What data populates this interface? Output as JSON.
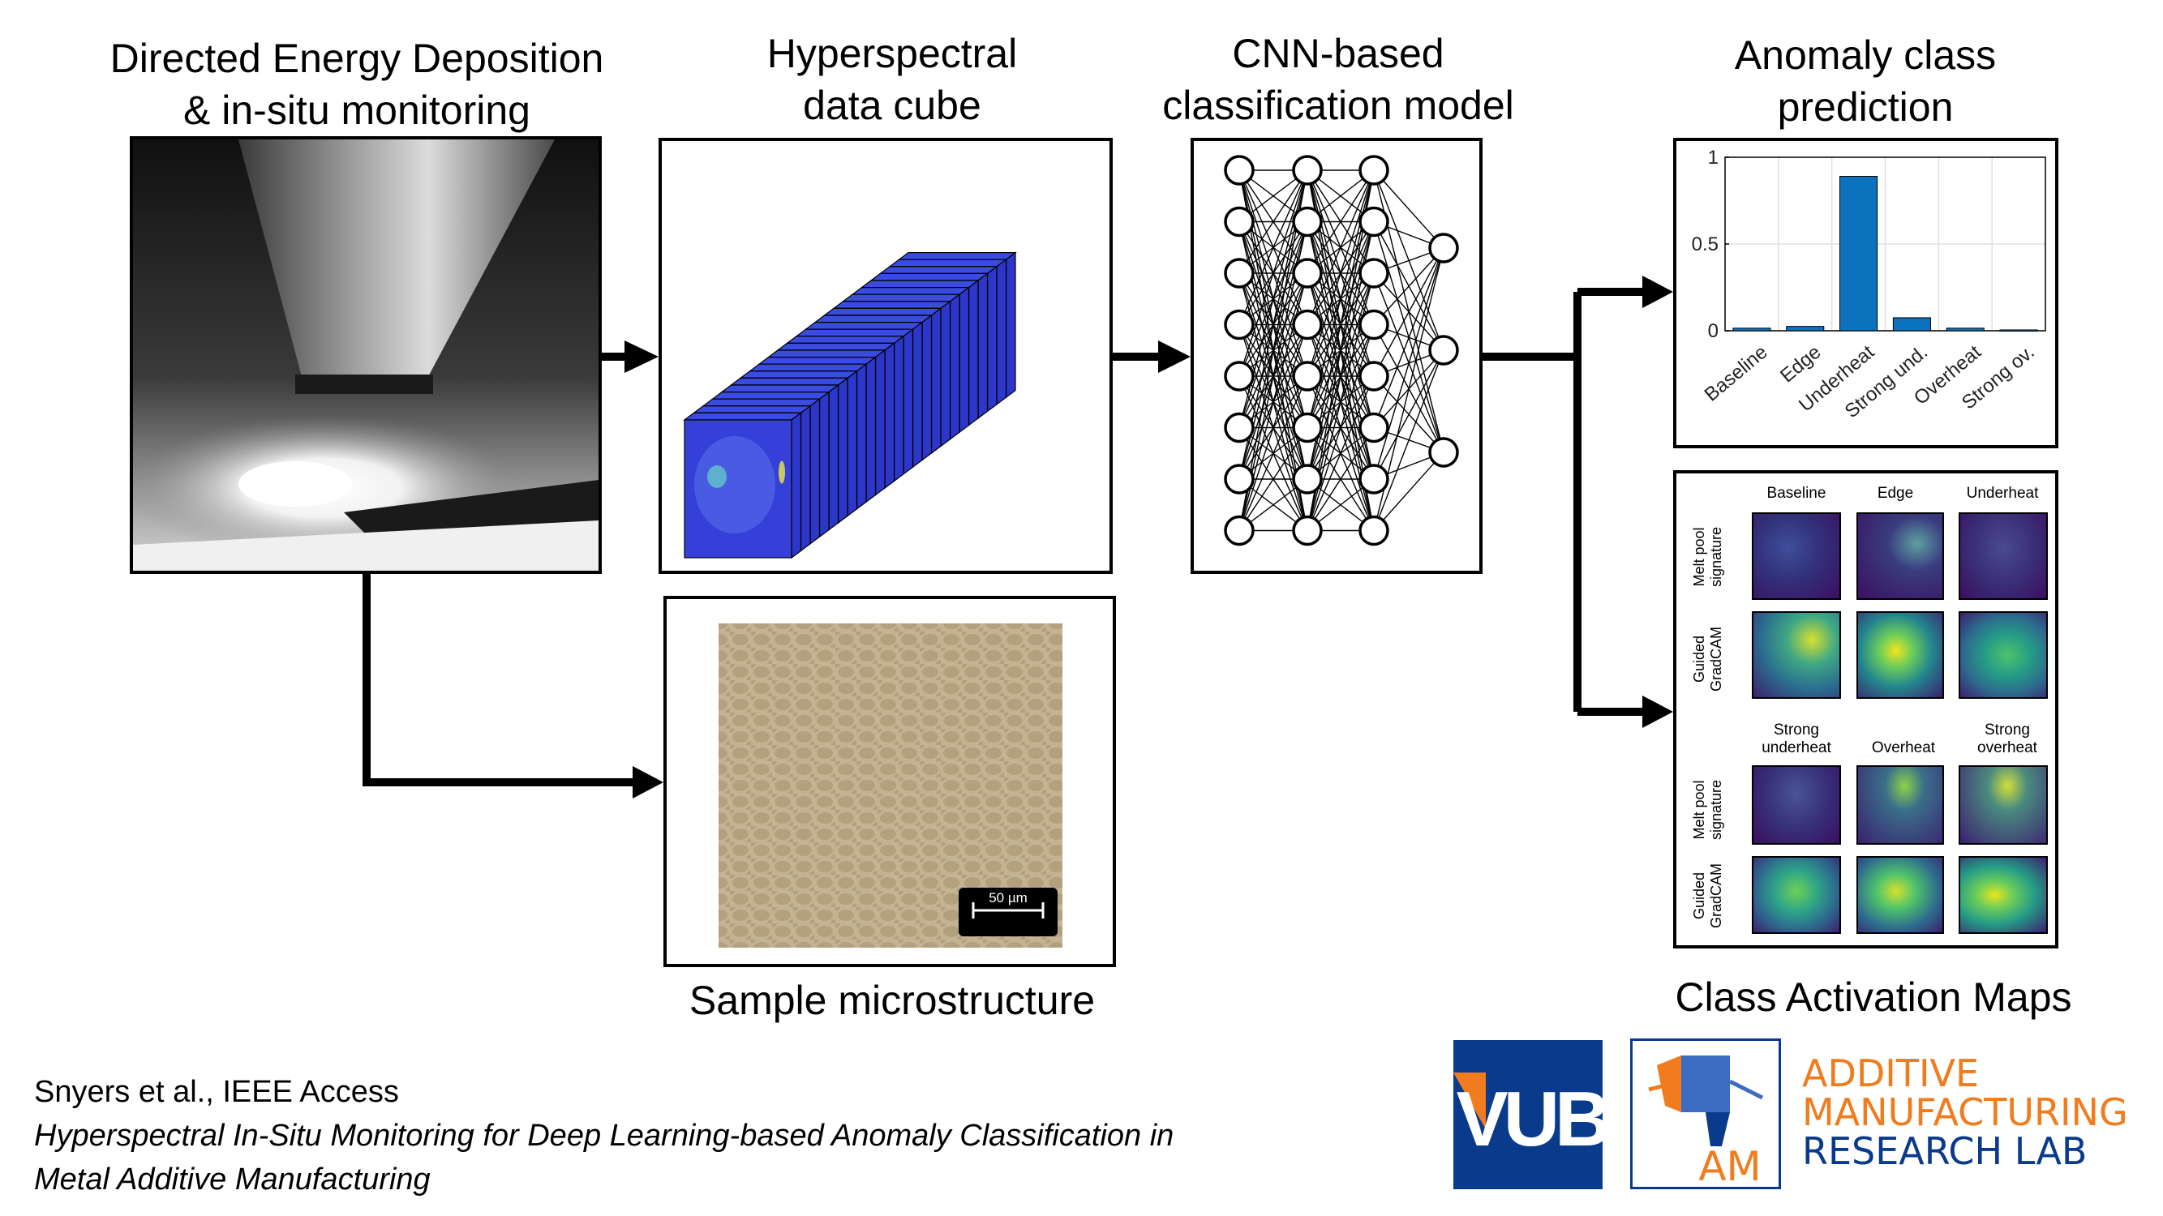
{
  "titles": {
    "ded": "Directed Energy Deposition\n& in-situ monitoring",
    "cube": "Hyperspectral\ndata cube",
    "cnn": "CNN-based\nclassification model",
    "prediction": "Anomaly class\nprediction",
    "microstructure": "Sample microstructure",
    "cam": "Class Activation Maps"
  },
  "scale_bar": "50 µm",
  "chart_data": {
    "type": "bar",
    "categories": [
      "Baseline",
      "Edge",
      "Underheat",
      "Strong und.",
      "Overheat",
      "Strong ov."
    ],
    "values": [
      0.015,
      0.025,
      0.89,
      0.075,
      0.015,
      0.005
    ],
    "ylim": [
      0,
      1
    ],
    "yticks": [
      "0",
      "0.5",
      "1"
    ],
    "grid": true,
    "bar_color": "#0d72bd"
  },
  "cam": {
    "row1_headers": [
      "Baseline",
      "Edge",
      "Underheat"
    ],
    "row2_headers": [
      "Strong\nunderheat",
      "Overheat",
      "Strong\noverheat"
    ],
    "melt_label": "Melt pool\nsignature",
    "gradcam_label": "Guided\nGradCAM"
  },
  "citation": {
    "authors": "Snyers et al., IEEE Access",
    "title_line1": "Hyperspectral In-Situ Monitoring for Deep Learning-based Anomaly Classification in",
    "title_line2": "Metal Additive Manufacturing"
  },
  "logos": {
    "vub": "VUB",
    "am": "AM",
    "lab_line1": "ADDITIVE",
    "lab_line2": "MANUFACTURING",
    "lab_line3": "RESEARCH LAB",
    "lab_color1": "#f07c1e",
    "lab_color2": "#0a3a8c"
  }
}
